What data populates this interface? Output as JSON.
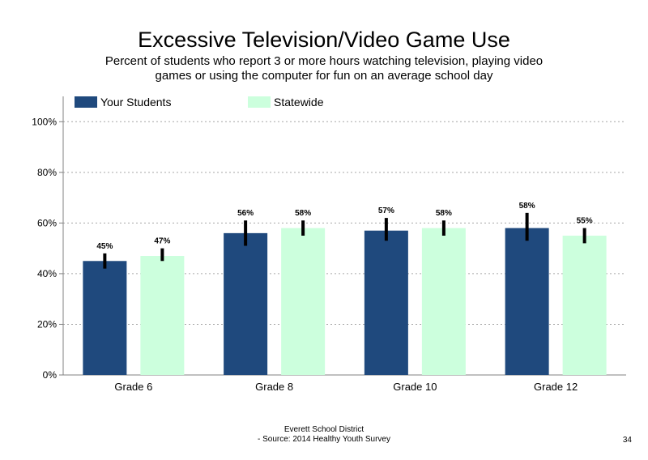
{
  "chart_data": {
    "type": "bar",
    "title": "Excessive Television/Video Game Use",
    "subtitle": "Percent of students who report 3 or more hours watching television, playing video games or using the computer for fun on an average school day",
    "categories": [
      "Grade 6",
      "Grade 8",
      "Grade 10",
      "Grade 12"
    ],
    "series": [
      {
        "name": "Your Students",
        "color": "#1f497d",
        "values": [
          45,
          56,
          57,
          58
        ],
        "labels": [
          "45%",
          "56%",
          "57%",
          "58%"
        ],
        "error_low": [
          42,
          51,
          53,
          53
        ],
        "error_high": [
          48,
          61,
          62,
          64
        ]
      },
      {
        "name": "Statewide",
        "color": "#ccffdd",
        "values": [
          47,
          58,
          58,
          55
        ],
        "labels": [
          "47%",
          "58%",
          "58%",
          "55%"
        ],
        "error_low": [
          45,
          55,
          55,
          52
        ],
        "error_high": [
          50,
          61,
          61,
          58
        ]
      }
    ],
    "ylim": [
      0,
      110
    ],
    "yticks": [
      0,
      20,
      40,
      60,
      80,
      100
    ],
    "ytick_labels": [
      "0%",
      "20%",
      "40%",
      "60%",
      "80%",
      "100%"
    ],
    "grid": true,
    "legend_position": "top"
  },
  "footer": {
    "line1": "Everett School District",
    "line2": "- Source: 2014 Healthy  Youth Survey"
  },
  "page_number": "34"
}
